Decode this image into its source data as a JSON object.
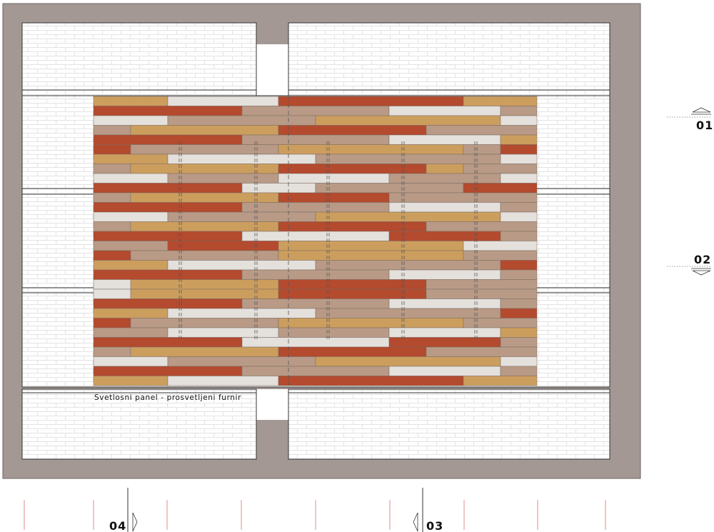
{
  "caption": "Svetlosni panel - prosvetljeni furnir",
  "section_markers": {
    "m01": "01",
    "m02": "02",
    "m03": "03",
    "m04": "04"
  },
  "colors": {
    "wall": "#a39894",
    "brick_fill": "#ffffff",
    "brick_line": "#e3e3e3",
    "opening": "#ffffff",
    "strip_red": "#b44a2e",
    "strip_ochre": "#cc9e5e",
    "strip_taupe": "#b89a86",
    "strip_light": "#e4e0dc",
    "axis_red": "#e58b8b"
  }
}
